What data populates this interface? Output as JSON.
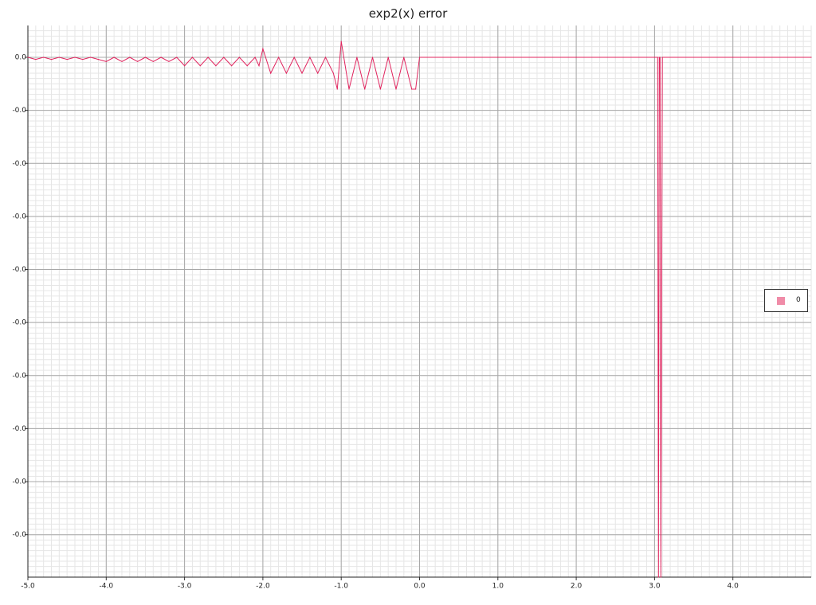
{
  "chart_data": {
    "type": "line",
    "title": "exp2(x) error",
    "xlabel": "",
    "ylabel": "",
    "xlim": [
      -5.0,
      5.0
    ],
    "ylim": [
      -0.0049,
      0.0003
    ],
    "x_ticks": [
      -5.0,
      -4.0,
      -3.0,
      -2.0,
      -1.0,
      0.0,
      1.0,
      2.0,
      3.0,
      4.0
    ],
    "x_tick_labels": [
      "-5.0",
      "-4.0",
      "-3.0",
      "-2.0",
      "-1.0",
      "0.0",
      "1.0",
      "2.0",
      "3.0",
      "4.0"
    ],
    "y_ticks": [
      0.0,
      -0.0005,
      -0.001,
      -0.0015,
      -0.002,
      -0.0025,
      -0.003,
      -0.0035,
      -0.004,
      -0.0045
    ],
    "y_tick_labels": [
      "0.0",
      "-0.0",
      "-0.0",
      "-0.0",
      "-0.0",
      "-0.0",
      "-0.0",
      "-0.0",
      "-0.0",
      "-0.0"
    ],
    "grid": true,
    "legend_position": "right",
    "series": [
      {
        "name": "0",
        "color": "#e0245e",
        "swatch_color": "#f08ca8",
        "x": [
          -5.0,
          -4.9,
          -4.8,
          -4.7,
          -4.6,
          -4.5,
          -4.4,
          -4.3,
          -4.2,
          -4.1,
          -4.0,
          -3.9,
          -3.8,
          -3.7,
          -3.6,
          -3.5,
          -3.4,
          -3.3,
          -3.2,
          -3.1,
          -3.0,
          -2.9,
          -2.8,
          -2.7,
          -2.6,
          -2.5,
          -2.4,
          -2.3,
          -2.2,
          -2.1,
          -2.05,
          -2.0,
          -1.9,
          -1.8,
          -1.7,
          -1.6,
          -1.5,
          -1.4,
          -1.3,
          -1.2,
          -1.1,
          -1.05,
          -1.0,
          -0.9,
          -0.8,
          -0.7,
          -0.6,
          -0.5,
          -0.4,
          -0.3,
          -0.2,
          -0.1,
          -0.05,
          0.0,
          1.0,
          2.0,
          3.0,
          3.04,
          3.05,
          3.06,
          3.07,
          3.08,
          3.1,
          4.0,
          5.0
        ],
        "y": [
          0.0,
          -2e-05,
          0.0,
          -2e-05,
          0.0,
          -2e-05,
          0.0,
          -2e-05,
          0.0,
          -2e-05,
          -4e-05,
          0.0,
          -4e-05,
          0.0,
          -4e-05,
          0.0,
          -4e-05,
          0.0,
          -4e-05,
          0.0,
          -8e-05,
          0.0,
          -8e-05,
          0.0,
          -8e-05,
          0.0,
          -8e-05,
          0.0,
          -8e-05,
          0.0,
          -8e-05,
          8e-05,
          -0.00015,
          0.0,
          -0.00015,
          0.0,
          -0.00015,
          0.0,
          -0.00015,
          0.0,
          -0.00015,
          -0.0003,
          0.00015,
          -0.0003,
          0.0,
          -0.0003,
          0.0,
          -0.0003,
          0.0,
          -0.0003,
          0.0,
          -0.0003,
          -0.0003,
          0.0,
          0.0,
          0.0,
          0.0,
          0.0,
          -0.0049,
          0.0,
          0.0,
          -0.0049,
          0.0,
          0.0,
          0.0
        ]
      }
    ]
  }
}
